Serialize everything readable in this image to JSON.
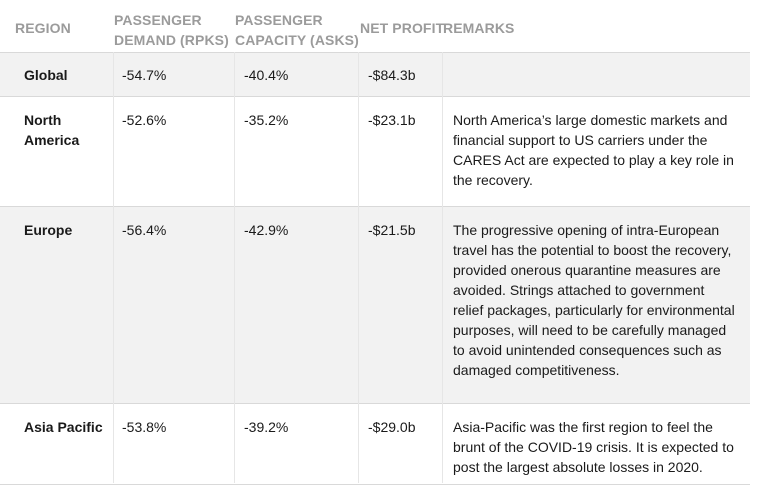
{
  "table": {
    "headers": {
      "region": "REGION",
      "demand_line1": "PASSENGER",
      "demand_line2": "DEMAND (RPKS)",
      "capacity_line1": "PASSENGER",
      "capacity_line2": "CAPACITY (ASKS)",
      "profit": "NET PROFIT",
      "remarks": "REMARKS"
    },
    "rows": [
      {
        "region": "Global",
        "demand": "-54.7%",
        "capacity": "-40.4%",
        "profit": "-$84.3b",
        "remarks": ""
      },
      {
        "region": "North America",
        "demand": "-52.6%",
        "capacity": "-35.2%",
        "profit": "-$23.1b",
        "remarks": "North America’s large domestic markets and financial support to US carriers under the CARES Act are expected to play a key role in the recovery."
      },
      {
        "region": "Europe",
        "demand": "-56.4%",
        "capacity": "-42.9%",
        "profit": "-$21.5b",
        "remarks": "The progressive opening of intra-European travel has the potential to boost the recovery, provided onerous quarantine measures are avoided. Strings attached to government relief packages, particularly for environmental purposes, will need to be carefully managed to avoid unintended consequences such as damaged competitiveness."
      },
      {
        "region": "Asia Pacific",
        "demand": "-53.8%",
        "capacity": "-39.2%",
        "profit": "-$29.0b",
        "remarks": "Asia-Pacific was the first region to feel the brunt of the COVID-19 crisis. It is expected to post the largest absolute losses in 2020."
      }
    ]
  }
}
